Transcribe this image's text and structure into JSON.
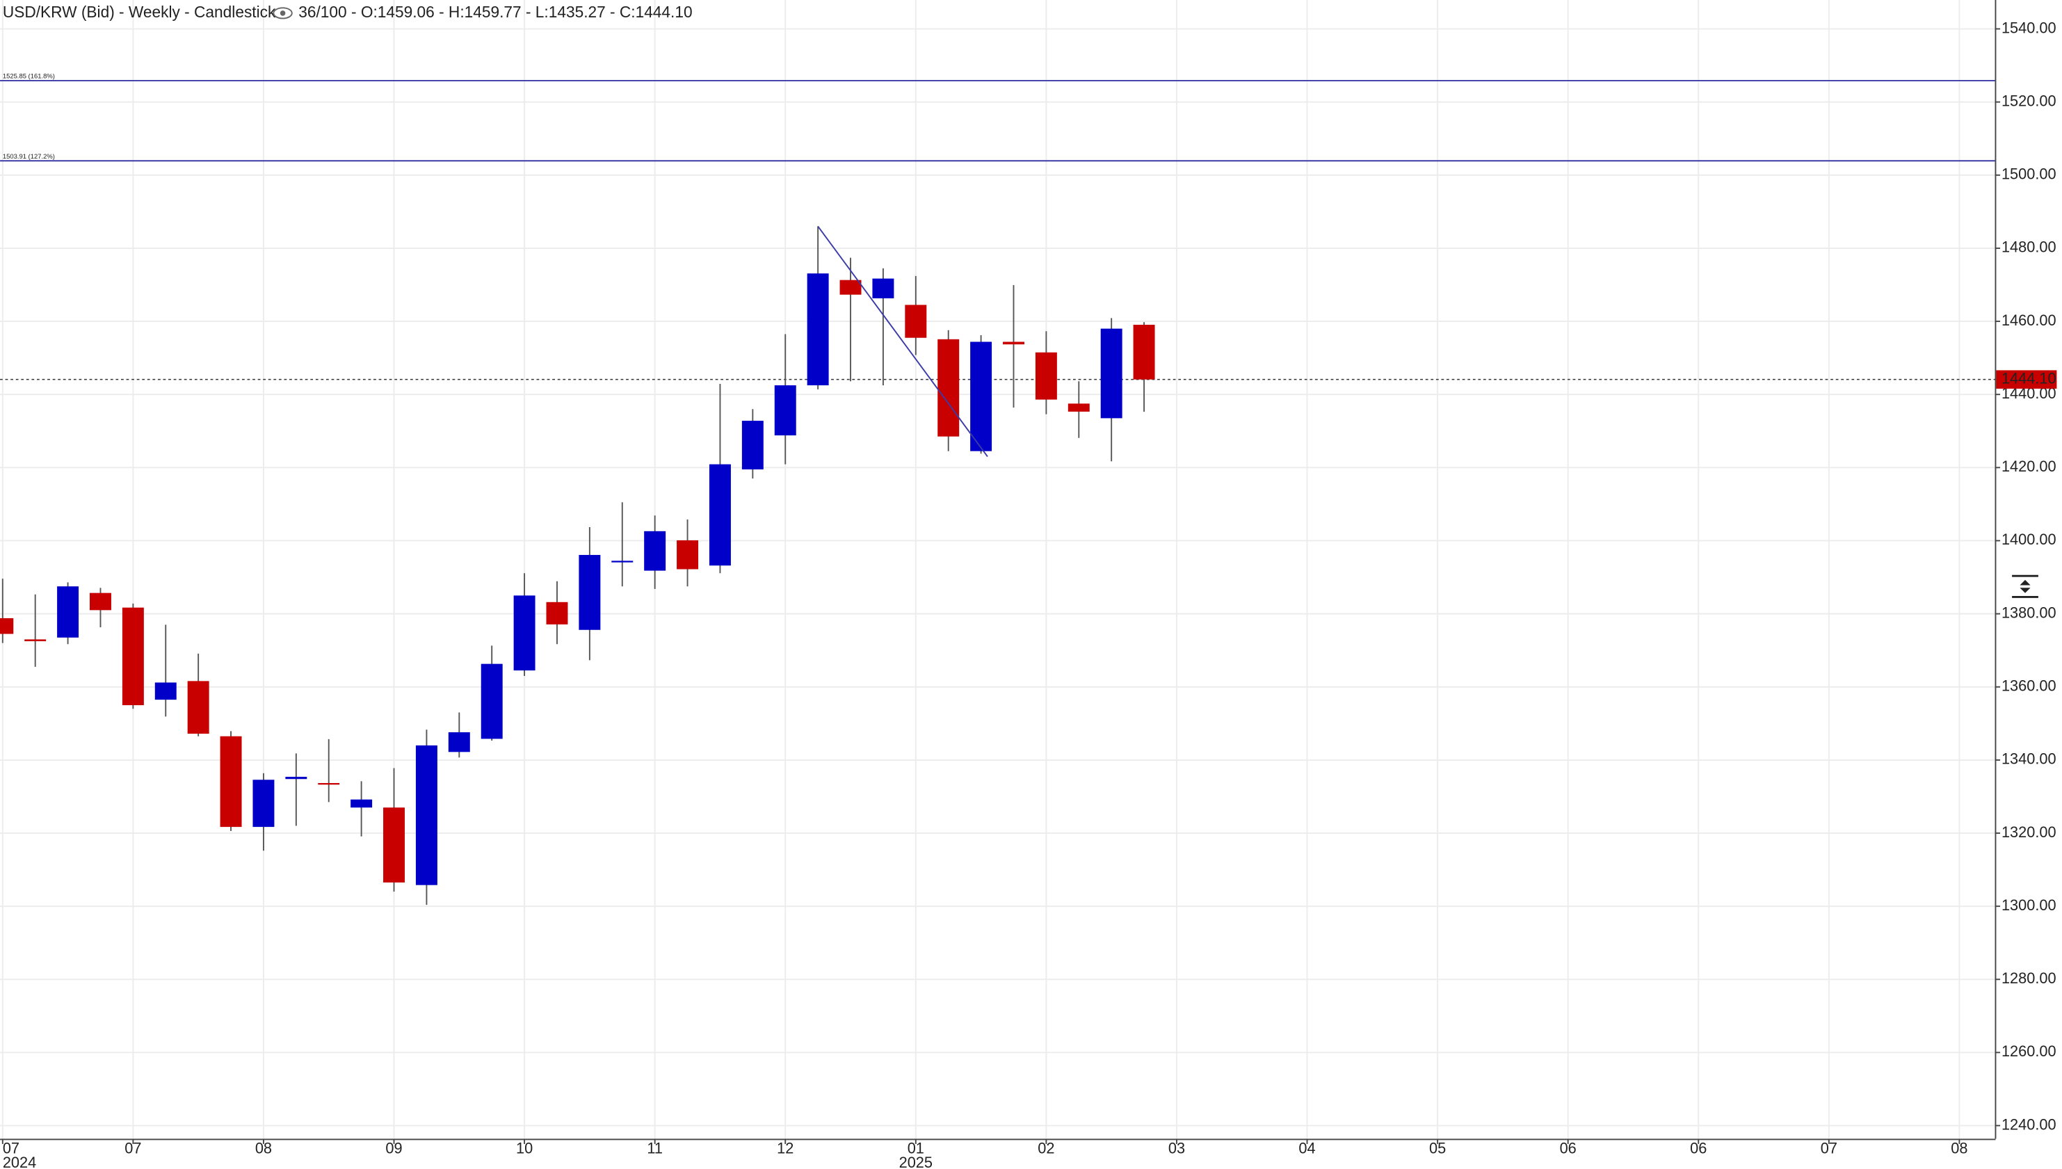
{
  "chart_data": {
    "type": "candlestick",
    "title": "USD/KRW (Bid) - Weekly - Candlestick",
    "header_stats": "36/100 - O:1459.06 - H:1459.77 - L:1435.27 - C:1444.10",
    "up_color": "#0000c8",
    "down_color": "#c80000",
    "open": [
      1378.8,
      1373,
      1373.5,
      1385.7,
      1381.7,
      1356.5,
      1361.6,
      1346.5,
      1321.7,
      1334.8,
      1333.7,
      1327,
      1327,
      1305.8,
      1342.2,
      1345.8,
      1364.5,
      1383.2,
      1375.6,
      1394.2,
      1391.8,
      1400.1,
      1393.2,
      1419.5,
      1428.8,
      1442.5,
      1471.3,
      1466.3,
      1464.5,
      1455.1,
      1424.5,
      1454.4,
      1451.5,
      1437.5,
      1433.5,
      1459.06
    ],
    "high": [
      1389.6,
      1385.3,
      1388.6,
      1387.1,
      1382.8,
      1377,
      1369.1,
      1347.9,
      1336.4,
      1341.8,
      1345.7,
      1334.2,
      1337.8,
      1348.3,
      1353,
      1371.3,
      1391.1,
      1388.9,
      1403.7,
      1410.5,
      1406.9,
      1405.8,
      1442.9,
      1436,
      1456.5,
      1486,
      1477.4,
      1474.5,
      1472.4,
      1457.6,
      1456.2,
      1469.9,
      1457.3,
      1443.6,
      1460.9,
      1459.77
    ],
    "low": [
      1372,
      1365.5,
      1371.7,
      1376.3,
      1354,
      1351.9,
      1346.5,
      1320.6,
      1315.2,
      1322,
      1328.5,
      1319.1,
      1304,
      1300.4,
      1340.7,
      1345.3,
      1363,
      1371.7,
      1367.3,
      1387.5,
      1386.8,
      1387.5,
      1391.1,
      1417,
      1420.9,
      1441.4,
      1443.6,
      1442.5,
      1450.8,
      1424.5,
      1423.8,
      1436.4,
      1434.6,
      1428.1,
      1421.7,
      1435.27
    ],
    "close": [
      1374.5,
      1372.5,
      1387.5,
      1381,
      1355,
      1361.2,
      1347.2,
      1321.7,
      1334.6,
      1335.4,
      1333.4,
      1329.2,
      1306.5,
      1344,
      1347.6,
      1366.3,
      1385,
      1377.1,
      1396.1,
      1394.5,
      1402.6,
      1392.2,
      1420.9,
      1432.8,
      1442.5,
      1473.1,
      1467.3,
      1471.7,
      1455.5,
      1428.5,
      1454.4,
      1453.7,
      1438.6,
      1435.3,
      1458,
      1444.1
    ],
    "xlim": [
      -0.08,
      61.09
    ],
    "xticks": [
      {
        "value": 0,
        "label": "07"
      },
      {
        "value": 4,
        "label": "07"
      },
      {
        "value": 8,
        "label": "08"
      },
      {
        "value": 12,
        "label": "09"
      },
      {
        "value": 16,
        "label": "10"
      },
      {
        "value": 20,
        "label": "11"
      },
      {
        "value": 24,
        "label": "12"
      },
      {
        "value": 28,
        "label": "01"
      },
      {
        "value": 32,
        "label": "02"
      },
      {
        "value": 36,
        "label": "03"
      },
      {
        "value": 40,
        "label": "04"
      },
      {
        "value": 44,
        "label": "05"
      },
      {
        "value": 48,
        "label": "06"
      },
      {
        "value": 52,
        "label": "06"
      },
      {
        "value": 56,
        "label": "07"
      },
      {
        "value": 60,
        "label": "08"
      }
    ],
    "x_year_labels": [
      {
        "value": 0,
        "label": "2024"
      },
      {
        "value": 28,
        "label": "2025"
      }
    ],
    "ylim": [
      1236.4,
      1547.9
    ],
    "yticks": [
      {
        "value": 1240,
        "label": "1240.00"
      },
      {
        "value": 1260,
        "label": "1260.00"
      },
      {
        "value": 1280,
        "label": "1280.00"
      },
      {
        "value": 1300,
        "label": "1300.00"
      },
      {
        "value": 1320,
        "label": "1320.00"
      },
      {
        "value": 1340,
        "label": "1340.00"
      },
      {
        "value": 1360,
        "label": "1360.00"
      },
      {
        "value": 1380,
        "label": "1380.00"
      },
      {
        "value": 1400,
        "label": "1400.00"
      },
      {
        "value": 1420,
        "label": "1420.00"
      },
      {
        "value": 1440,
        "label": "1440.00"
      },
      {
        "value": 1460,
        "label": "1460.00"
      },
      {
        "value": 1480,
        "label": "1480.00"
      },
      {
        "value": 1500,
        "label": "1500.00"
      },
      {
        "value": 1520,
        "label": "1520.00"
      },
      {
        "value": 1540,
        "label": "1540.00"
      }
    ],
    "grid": true,
    "hlines": [
      {
        "value": 1525.85,
        "label": "1525.85 (161.8%)"
      },
      {
        "value": 1503.91,
        "label": "1503.91 (127.2%)"
      }
    ],
    "last_price": {
      "value": 1444.1,
      "label": "1444.10"
    },
    "trendline": {
      "x": [
        25,
        30.2
      ],
      "y": [
        1486,
        1423
      ]
    }
  }
}
